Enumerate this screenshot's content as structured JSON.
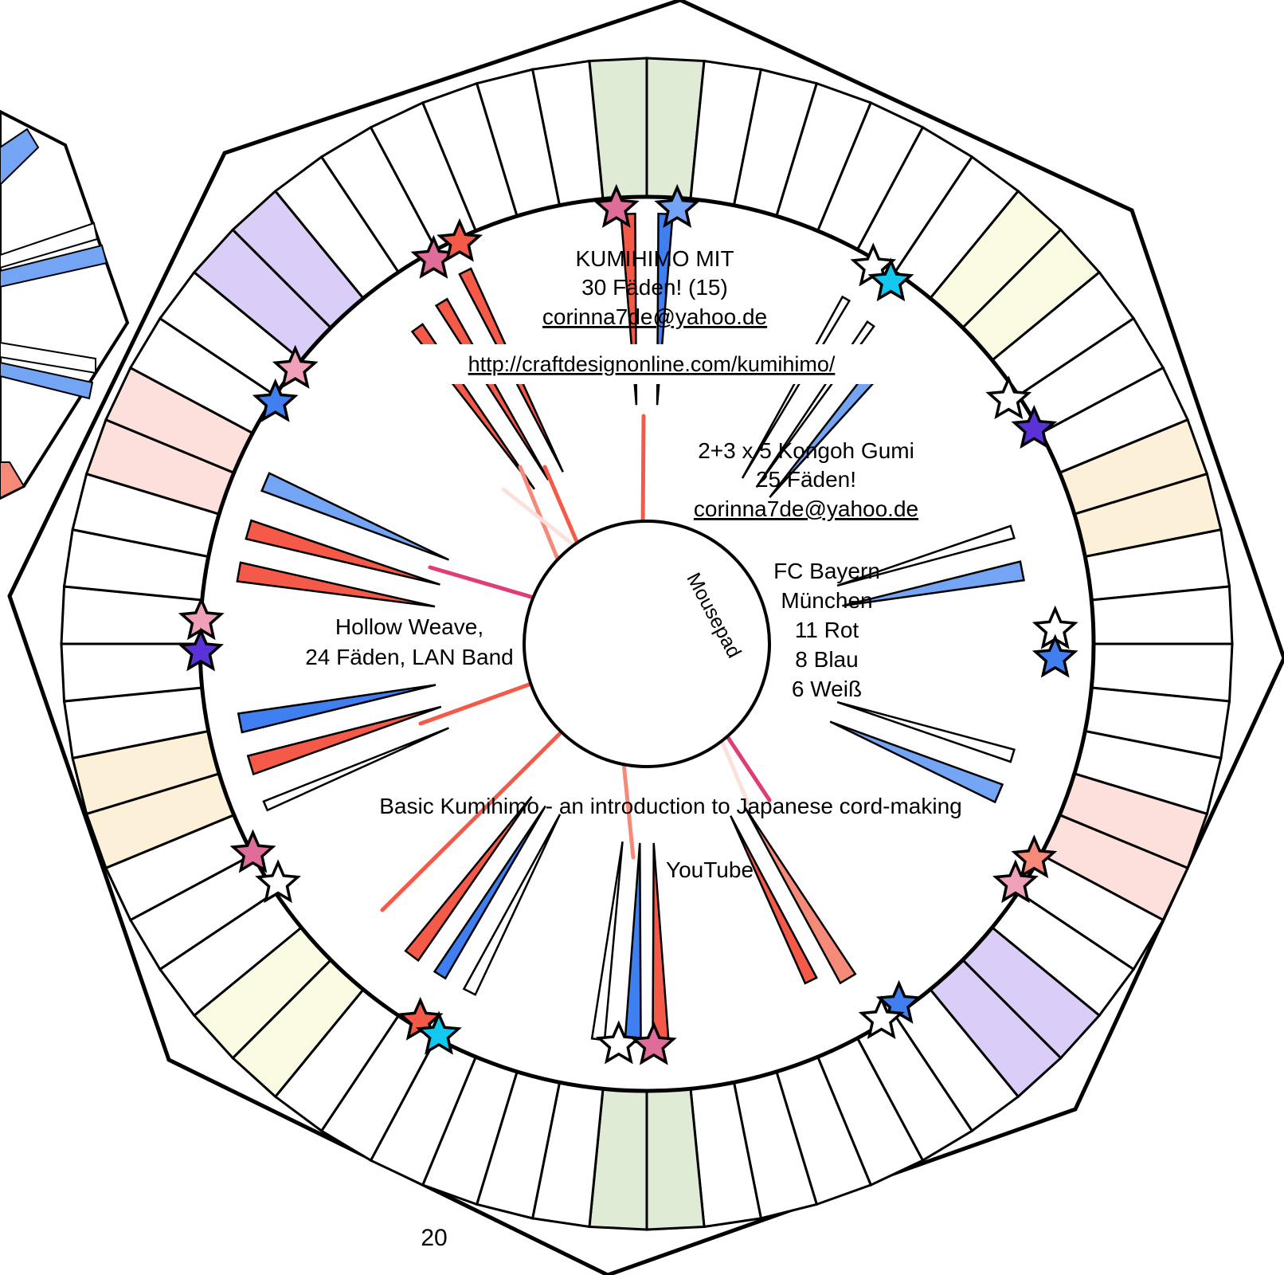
{
  "title": {
    "line1": "KUMIHIMO MIT",
    "line2": "30 Fäden! (15)",
    "email": "corinna7de@yahoo.de"
  },
  "url": "http://craftdesignonline.com/kumihimo/",
  "kongoh": {
    "line1": "2+3 x 5 Kongoh Gumi",
    "line2": "25 Fäden!",
    "email": "corinna7de@yahoo.de"
  },
  "bayern": {
    "line1": "FC Bayern",
    "line2": "München",
    "line3": "11 Rot",
    "line4": "8 Blau",
    "line5": "6 Weiß"
  },
  "hollow": {
    "line1": "Hollow Weave,",
    "line2": "24 Fäden, LAN Band"
  },
  "center_label": "Mousepad",
  "basic": "Basic Kumihimo - an introduction to Japanese cord-making",
  "youtube": "YouTube",
  "page_number": "20",
  "colors": {
    "red": "#f55a48",
    "salmon": "#f58a78",
    "pink": "#e06c9a",
    "light_pink": "#f0a0b8",
    "blue": "#3f7ff0",
    "light_blue": "#74a4f4",
    "cyan": "#12c8f0",
    "purple": "#5a32d8",
    "magenta_line": "#e03c78",
    "band_green": "#e0ebd6",
    "band_purple": "#dacef8",
    "band_yellow": "#fbfbe4",
    "band_peach": "#fdf0d8",
    "band_pink": "#fde0dc"
  }
}
